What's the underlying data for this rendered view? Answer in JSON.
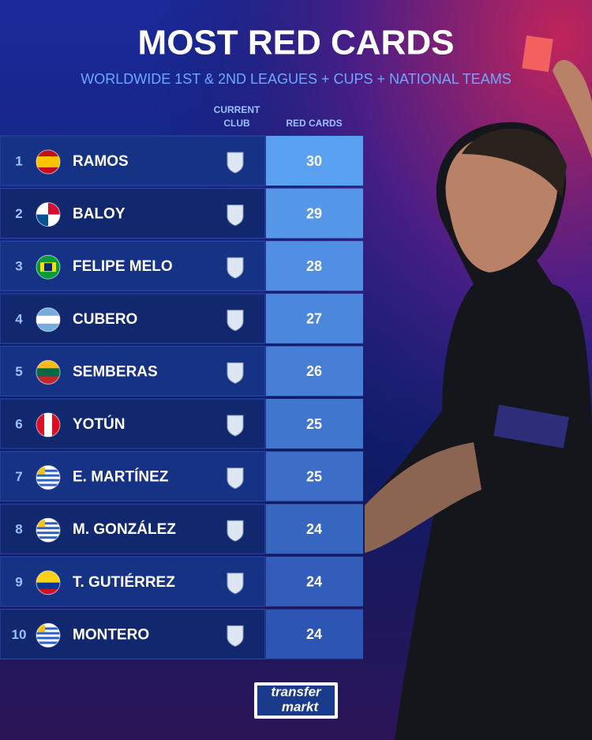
{
  "header": {
    "title": "MOST RED CARDS",
    "subtitle": "WORLDWIDE 1ST & 2ND LEAGUES + CUPS + NATIONAL TEAMS"
  },
  "table": {
    "columns": {
      "club": [
        "CURRENT",
        "CLUB"
      ],
      "red_cards": "RED CARDS"
    },
    "rows": [
      {
        "rank": 1,
        "player": "RAMOS",
        "red_cards": 30
      },
      {
        "rank": 2,
        "player": "BALOY",
        "red_cards": 29
      },
      {
        "rank": 3,
        "player": "FELIPE MELO",
        "red_cards": 28
      },
      {
        "rank": 4,
        "player": "CUBERO",
        "red_cards": 27
      },
      {
        "rank": 5,
        "player": "SEMBERAS",
        "red_cards": 26
      },
      {
        "rank": 6,
        "player": "YOTÚN",
        "red_cards": 25
      },
      {
        "rank": 7,
        "player": "E. MARTÍNEZ",
        "red_cards": 25
      },
      {
        "rank": 8,
        "player": "M. GONZÁLEZ",
        "red_cards": 24
      },
      {
        "rank": 9,
        "player": "T. GUTIÉRREZ",
        "red_cards": 24
      },
      {
        "rank": 10,
        "player": "MONTERO",
        "red_cards": 24
      }
    ]
  },
  "footer": {
    "logo": [
      "transfer",
      "markt"
    ]
  }
}
